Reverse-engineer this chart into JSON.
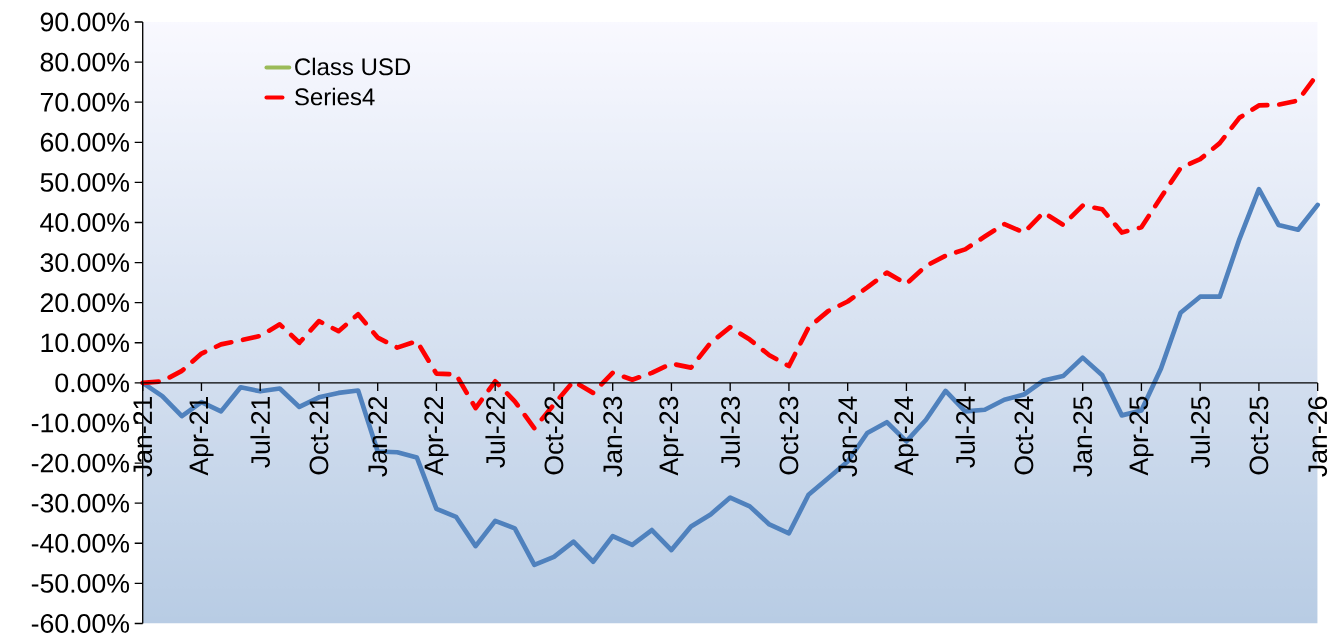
{
  "chart_data": {
    "type": "line",
    "x": [
      "2021-01",
      "2021-02",
      "2021-03",
      "2021-04",
      "2021-05",
      "2021-06",
      "2021-07",
      "2021-08",
      "2021-09",
      "2021-10",
      "2021-11",
      "2021-12",
      "2022-01",
      "2022-02",
      "2022-03",
      "2022-04",
      "2022-05",
      "2022-06",
      "2022-07",
      "2022-08",
      "2022-09",
      "2022-10",
      "2022-11",
      "2022-12",
      "2023-01",
      "2023-02",
      "2023-03",
      "2023-04",
      "2023-05",
      "2023-06",
      "2023-07",
      "2023-08",
      "2023-09",
      "2023-10",
      "2023-11",
      "2023-12",
      "2024-01",
      "2024-02",
      "2024-03",
      "2024-04",
      "2024-05",
      "2024-06",
      "2024-07",
      "2024-08",
      "2024-09",
      "2024-10",
      "2024-11",
      "2024-12",
      "2025-01",
      "2025-02",
      "2025-03",
      "2025-04",
      "2025-05",
      "2025-06",
      "2025-07",
      "2025-08",
      "2025-09",
      "2025-10",
      "2025-11",
      "2025-12",
      "2026-01"
    ],
    "series": [
      {
        "color": "#4f81bd",
        "values": [
          0,
          -3.3,
          -8.3,
          -4.8,
          -7.1,
          -1.1,
          -2.1,
          -1.4,
          -6.0,
          -3.6,
          -2.5,
          -1.9,
          -17.1,
          -17.3,
          -18.6,
          -31.4,
          -33.4,
          -40.7,
          -34.4,
          -36.3,
          -45.4,
          -43.4,
          -39.6,
          -44.6,
          -38.2,
          -40.4,
          -36.7,
          -41.7,
          -35.8,
          -32.8,
          -28.6,
          -30.8,
          -35.3,
          -37.5,
          -27.9,
          -23.8,
          -19.6,
          -12.5,
          -9.8,
          -14.6,
          -9.2,
          -2.0,
          -7.1,
          -6.7,
          -4.2,
          -2.9,
          0.6,
          1.7,
          6.3,
          1.9,
          -8.1,
          -6.9,
          3.6,
          17.5,
          21.5,
          21.5,
          35.8,
          48.3,
          39.4,
          38.2,
          44.4
        ]
      },
      {
        "name": "Class USD",
        "color": "#9bbb59",
        "values": [
          null,
          null,
          null,
          null,
          null,
          null,
          null,
          null,
          null,
          null,
          null,
          null,
          null,
          null,
          null,
          null,
          null,
          null,
          null,
          null,
          null,
          null,
          null,
          null,
          null,
          null,
          null,
          null,
          null,
          null,
          null,
          null,
          null,
          null,
          null,
          null,
          null,
          null,
          null,
          null,
          null,
          null,
          null,
          null,
          null,
          null,
          null,
          null,
          null,
          null,
          null,
          null,
          null,
          null,
          null,
          null,
          null,
          null,
          null,
          null,
          null
        ]
      },
      {
        "name": "Series4",
        "color": "#ff0000",
        "line_style": "dashed",
        "values": [
          0,
          0.4,
          3.0,
          7.3,
          9.6,
          10.6,
          11.7,
          14.6,
          10.0,
          15.4,
          12.9,
          17.1,
          11.3,
          8.8,
          10.4,
          2.3,
          2.1,
          -6.3,
          0.4,
          -4.6,
          -11.3,
          -5.4,
          0.4,
          -2.5,
          2.5,
          0.8,
          2.5,
          4.8,
          3.8,
          10.0,
          13.9,
          10.8,
          6.9,
          4.2,
          13.8,
          17.9,
          20.3,
          23.8,
          27.5,
          24.7,
          29.2,
          31.7,
          33.3,
          36.5,
          39.6,
          37.5,
          42.5,
          39.4,
          44.2,
          43.3,
          37.5,
          38.8,
          46.3,
          53.6,
          55.8,
          59.8,
          66.1,
          69.2,
          69.4,
          70.4,
          77.1
        ]
      }
    ],
    "xlim": [
      "2021-01",
      "2026-01"
    ],
    "xticks": [
      {
        "value": "2021-01",
        "label": "Jan-21"
      },
      {
        "value": "2021-04",
        "label": "Apr-21"
      },
      {
        "value": "2021-07",
        "label": "Jul-21"
      },
      {
        "value": "2021-10",
        "label": "Oct-21"
      },
      {
        "value": "2022-01",
        "label": "Jan-22"
      },
      {
        "value": "2022-04",
        "label": "Apr-22"
      },
      {
        "value": "2022-07",
        "label": "Jul-22"
      },
      {
        "value": "2022-10",
        "label": "Oct-22"
      },
      {
        "value": "2023-01",
        "label": "Jan-23"
      },
      {
        "value": "2023-04",
        "label": "Apr-23"
      },
      {
        "value": "2023-07",
        "label": "Jul-23"
      },
      {
        "value": "2023-10",
        "label": "Oct-23"
      },
      {
        "value": "2024-01",
        "label": "Jan-24"
      },
      {
        "value": "2024-04",
        "label": "Apr-24"
      },
      {
        "value": "2024-07",
        "label": "Jul-24"
      },
      {
        "value": "2024-10",
        "label": "Oct-24"
      },
      {
        "value": "2025-01",
        "label": "Jan-25"
      },
      {
        "value": "2025-04",
        "label": "Apr-25"
      },
      {
        "value": "2025-07",
        "label": "Jul-25"
      },
      {
        "value": "2025-10",
        "label": "Oct-25"
      },
      {
        "value": "2026-01",
        "label": "Jan-26"
      }
    ],
    "ylim": [
      -60,
      90
    ],
    "yticks": [
      {
        "value": -60,
        "label": "-60.00%"
      },
      {
        "value": -50,
        "label": "-50.00%"
      },
      {
        "value": -40,
        "label": "-40.00%"
      },
      {
        "value": -30,
        "label": "-30.00%"
      },
      {
        "value": -20,
        "label": "-20.00%"
      },
      {
        "value": -10,
        "label": "-10.00%"
      },
      {
        "value": 0,
        "label": "0.00%"
      },
      {
        "value": 10,
        "label": "10.00%"
      },
      {
        "value": 20,
        "label": "20.00%"
      },
      {
        "value": 30,
        "label": "30.00%"
      },
      {
        "value": 40,
        "label": "40.00%"
      },
      {
        "value": 50,
        "label": "50.00%"
      },
      {
        "value": 60,
        "label": "60.00%"
      },
      {
        "value": 70,
        "label": "70.00%"
      },
      {
        "value": 80,
        "label": "80.00%"
      },
      {
        "value": 90,
        "label": "90.00%"
      }
    ],
    "legend": "top left"
  }
}
